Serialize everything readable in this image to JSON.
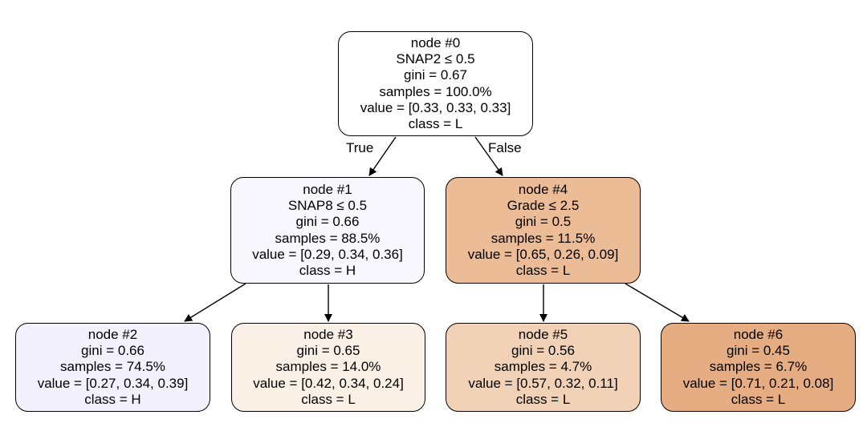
{
  "nodes": {
    "n0": {
      "id": "node #0",
      "split": "SNAP2 ≤ 0.5",
      "gini": "gini = 0.67",
      "samples": "samples = 100.0%",
      "value": "value = [0.33, 0.33, 0.33]",
      "class": "class = L",
      "fill": "#ffffff"
    },
    "n1": {
      "id": "node #1",
      "split": "SNAP8 ≤ 0.5",
      "gini": "gini = 0.66",
      "samples": "samples = 88.5%",
      "value": "value = [0.29, 0.34, 0.36]",
      "class": "class = H",
      "fill": "#f9f7fe"
    },
    "n2": {
      "id": "node #2",
      "gini": "gini = 0.66",
      "samples": "samples = 74.5%",
      "value": "value = [0.27, 0.34, 0.39]",
      "class": "class = H",
      "fill": "#f3f1fd"
    },
    "n3": {
      "id": "node #3",
      "gini": "gini = 0.65",
      "samples": "samples = 14.0%",
      "value": "value = [0.42, 0.34, 0.24]",
      "class": "class = L",
      "fill": "#fbf0e6"
    },
    "n4": {
      "id": "node #4",
      "split": "Grade ≤ 2.5",
      "gini": "gini = 0.5",
      "samples": "samples = 11.5%",
      "value": "value = [0.65, 0.26, 0.09]",
      "class": "class = L",
      "fill": "#ebbc96"
    },
    "n5": {
      "id": "node #5",
      "gini": "gini = 0.56",
      "samples": "samples = 4.7%",
      "value": "value = [0.57, 0.32, 0.11]",
      "class": "class = L",
      "fill": "#f1d2b6"
    },
    "n6": {
      "id": "node #6",
      "gini": "gini = 0.45",
      "samples": "samples = 6.7%",
      "value": "value = [0.71, 0.21, 0.08]",
      "class": "class = L",
      "fill": "#e6ac82"
    }
  },
  "edges": {
    "true_label": "True",
    "false_label": "False"
  }
}
